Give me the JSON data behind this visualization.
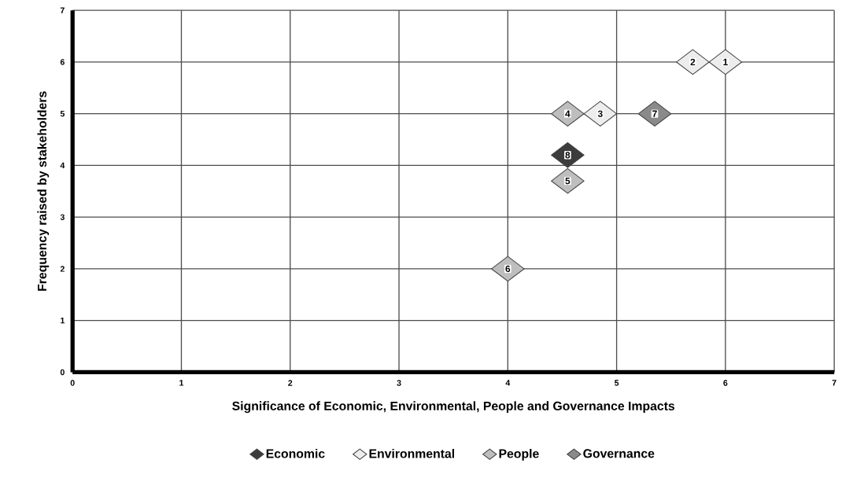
{
  "chart_data": {
    "type": "scatter",
    "xlabel": "Significance of Economic, Environmental, People and Governance Impacts",
    "ylabel": "Frequency raised by stakeholders",
    "xlim": [
      0,
      7
    ],
    "ylim": [
      0,
      7
    ],
    "xticks": [
      0,
      1,
      2,
      3,
      4,
      5,
      6,
      7
    ],
    "yticks": [
      0,
      1,
      2,
      3,
      4,
      5,
      6,
      7
    ],
    "grid": true,
    "legend": "bottom",
    "marker": "diamond",
    "series": [
      {
        "name": "Economic",
        "color": "#3c3c3c",
        "x": [
          4.55
        ],
        "values": [
          4.2
        ]
      },
      {
        "name": "Environmental",
        "color": "#ededed",
        "x": [
          6.0,
          5.7,
          4.85
        ],
        "values": [
          6,
          6,
          5
        ]
      },
      {
        "name": "People",
        "color": "#bebebe",
        "x": [
          4.55,
          4.55,
          4.0
        ],
        "values": [
          5,
          3.7,
          2
        ]
      },
      {
        "name": "Governance",
        "color": "#8a8a8a",
        "x": [
          5.35
        ],
        "values": [
          5
        ]
      }
    ],
    "annotations": [
      {
        "text": "1",
        "x": 6.0,
        "y": 6
      },
      {
        "text": "2",
        "x": 5.7,
        "y": 6
      },
      {
        "text": "3",
        "x": 4.85,
        "y": 5
      },
      {
        "text": "4",
        "x": 4.55,
        "y": 5
      },
      {
        "text": "5",
        "x": 4.55,
        "y": 3.7
      },
      {
        "text": "6",
        "x": 4.0,
        "y": 2
      },
      {
        "text": "7",
        "x": 5.35,
        "y": 5
      },
      {
        "text": "8",
        "x": 4.55,
        "y": 4.2
      }
    ]
  }
}
